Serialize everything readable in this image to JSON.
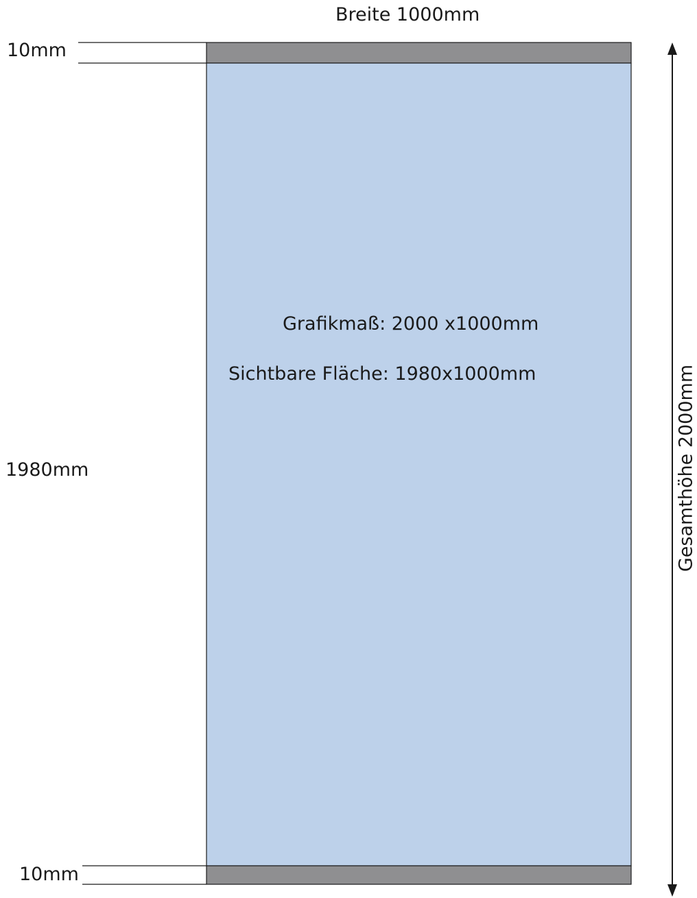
{
  "labels": {
    "width": "Breite 1000mm",
    "top_margin": "10mm",
    "visible_height": "1980mm",
    "bottom_margin": "10mm",
    "total_height": "Gesamthöhe 2000mm",
    "graphic_size": "Grafikmaß: 2000 x1000mm",
    "visible_area": "Sichtbare Fläche: 1980x1000mm"
  },
  "colors": {
    "visible_area_fill": "#bdd1ea",
    "margin_strip_fill": "#8f8f91",
    "line": "#1a1a1a"
  }
}
